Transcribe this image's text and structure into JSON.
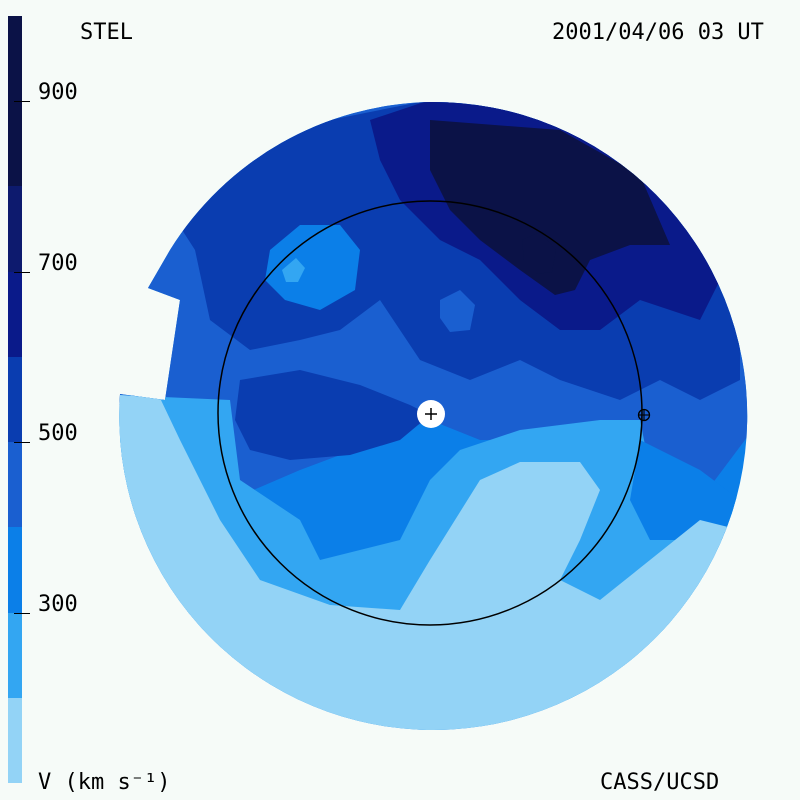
{
  "header": {
    "observatory": "STEL",
    "timestamp": "2001/04/06 03 UT"
  },
  "footer": {
    "units_label": "V (km s⁻¹)",
    "credit": "CASS/UCSD"
  },
  "colorbar": {
    "ticks": [
      {
        "value": 900,
        "label": "900"
      },
      {
        "value": 700,
        "label": "700"
      },
      {
        "value": 500,
        "label": "500"
      },
      {
        "value": 300,
        "label": "300"
      }
    ],
    "bands": [
      {
        "from": 900,
        "to": 1000,
        "color": "#0b1247"
      },
      {
        "from": 800,
        "to": 900,
        "color": "#0b1247"
      },
      {
        "from": 700,
        "to": 800,
        "color": "#0d1a6e"
      },
      {
        "from": 600,
        "to": 700,
        "color": "#0a1a8a"
      },
      {
        "from": 500,
        "to": 600,
        "color": "#0a3db0"
      },
      {
        "from": 400,
        "to": 500,
        "color": "#1a5fd0"
      },
      {
        "from": 300,
        "to": 400,
        "color": "#0b7fe8"
      },
      {
        "from": 200,
        "to": 300,
        "color": "#33a6f2"
      },
      {
        "from": 100,
        "to": 200,
        "color": "#93d3f6"
      }
    ],
    "range": [
      100,
      1000
    ]
  },
  "map": {
    "colors": {
      "v300": "#93d3f6",
      "v400": "#33a6f2",
      "v500": "#0b7fe8",
      "v600": "#1a5fd0",
      "v700": "#0a3db0",
      "v800": "#0a1a8a",
      "v900": "#0b1247"
    },
    "markers": [
      "sun-icon",
      "earth-icon"
    ]
  }
}
